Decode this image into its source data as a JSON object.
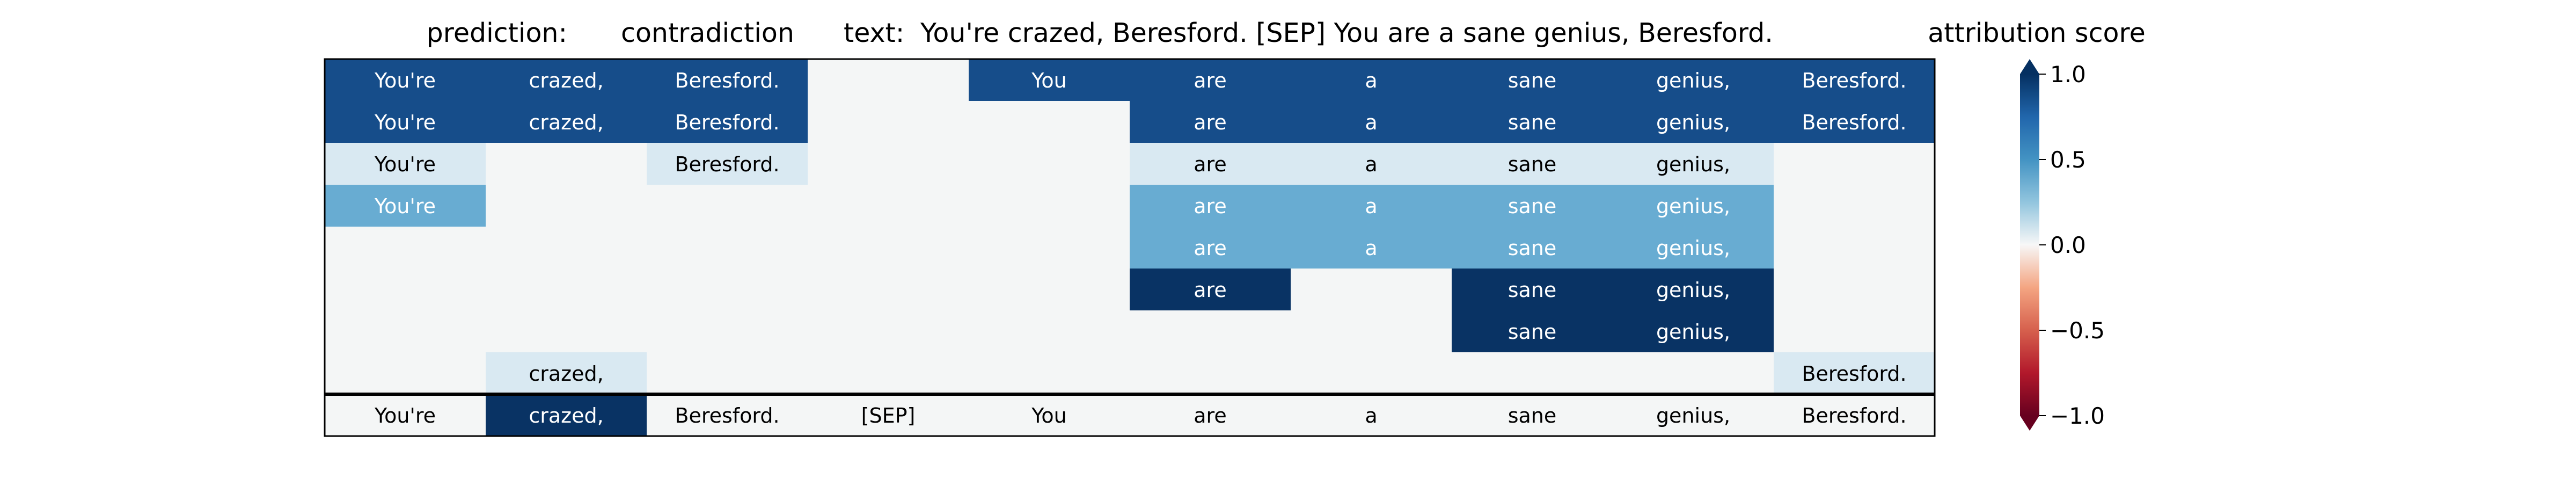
{
  "header": {
    "prediction_label": "prediction:",
    "prediction_value": "contradiction",
    "text_label": "text:",
    "text_value": "You're crazed, Beresford. [SEP] You are a sane genius, Beresford.",
    "colorbar_title": "attribution score"
  },
  "colors": {
    "background": "#ffffff",
    "neutral": "#f4f6f6",
    "border": "#000000",
    "dark_text_on": "#000000",
    "light_text_on": "#ffffff"
  },
  "chart_data": {
    "type": "heatmap",
    "tokens": [
      "You're",
      "crazed,",
      "Beresford.",
      "[SEP]",
      "You",
      "are",
      "a",
      "sane",
      "genius,",
      "Beresford."
    ],
    "rows": [
      [
        0.95,
        0.95,
        0.95,
        0.0,
        0.95,
        0.95,
        0.95,
        0.95,
        0.95,
        0.95
      ],
      [
        0.95,
        0.95,
        0.95,
        0.0,
        0.0,
        0.95,
        0.95,
        0.95,
        0.95,
        0.95
      ],
      [
        0.18,
        0.0,
        0.18,
        0.0,
        0.0,
        0.18,
        0.18,
        0.18,
        0.18,
        0.0
      ],
      [
        0.6,
        0.0,
        0.0,
        0.0,
        0.0,
        0.6,
        0.6,
        0.6,
        0.6,
        0.0
      ],
      [
        0.0,
        0.0,
        0.0,
        0.0,
        0.0,
        0.6,
        0.6,
        0.6,
        0.6,
        0.0
      ],
      [
        0.0,
        0.0,
        0.0,
        0.0,
        0.0,
        1.0,
        0.0,
        1.0,
        1.0,
        0.0
      ],
      [
        0.0,
        0.0,
        0.0,
        0.0,
        0.0,
        0.0,
        0.0,
        1.0,
        1.0,
        0.0
      ],
      [
        0.0,
        0.18,
        0.0,
        0.0,
        0.0,
        0.0,
        0.0,
        0.0,
        0.0,
        0.18
      ]
    ],
    "total_row": [
      0.0,
      1.0,
      0.0,
      0.0,
      0.0,
      0.0,
      0.0,
      0.0,
      0.0,
      0.0
    ],
    "colorbar": {
      "min": -1.0,
      "max": 1.0,
      "tick_values": [
        1.0,
        0.5,
        0.0,
        -0.5,
        -1.0
      ],
      "tick_labels": [
        "1.0",
        "0.5",
        "0.0",
        "−0.5",
        "−1.0"
      ],
      "colormap": "RdBu"
    }
  }
}
